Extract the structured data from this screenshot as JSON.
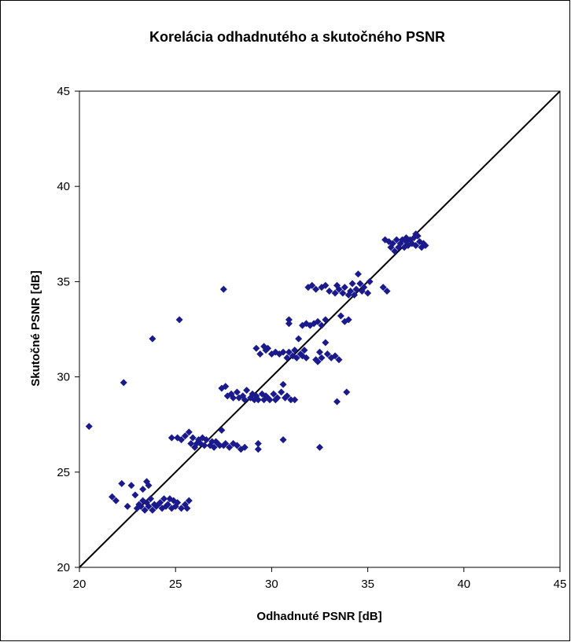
{
  "chart_data": {
    "type": "scatter",
    "title": "Korelácia odhadnutého a skutočného PSNR",
    "xlabel": "Odhadnuté PSNR [dB]",
    "ylabel": "Skutočné PSNR [dB]",
    "xlim": [
      20,
      45
    ],
    "ylim": [
      20,
      45
    ],
    "x_ticks": [
      "20",
      "25",
      "30",
      "35",
      "40",
      "45"
    ],
    "y_ticks": [
      "20",
      "25",
      "30",
      "35",
      "40",
      "45"
    ],
    "grid": false,
    "legend": "none",
    "marker": "diamond",
    "marker_color": "#1a1a8c",
    "reference_line": {
      "from": [
        20,
        20
      ],
      "to": [
        45,
        45
      ],
      "color": "#000000"
    },
    "series": [
      {
        "points": [
          [
            20.5,
            27.4
          ],
          [
            22.3,
            29.7
          ],
          [
            23.8,
            32.0
          ],
          [
            25.2,
            33.0
          ],
          [
            27.5,
            34.6
          ],
          [
            21.7,
            23.7
          ],
          [
            21.9,
            23.5
          ],
          [
            22.2,
            24.4
          ],
          [
            22.5,
            23.2
          ],
          [
            22.7,
            24.3
          ],
          [
            22.9,
            23.8
          ],
          [
            23.0,
            23.1
          ],
          [
            23.1,
            23.3
          ],
          [
            23.2,
            23.2
          ],
          [
            23.3,
            24.1
          ],
          [
            23.4,
            23.0
          ],
          [
            23.5,
            24.5
          ],
          [
            23.5,
            23.4
          ],
          [
            23.6,
            23.2
          ],
          [
            23.6,
            24.3
          ],
          [
            23.7,
            23.6
          ],
          [
            23.8,
            23.0
          ],
          [
            23.9,
            23.3
          ],
          [
            24.0,
            23.2
          ],
          [
            24.2,
            23.4
          ],
          [
            24.3,
            23.1
          ],
          [
            24.4,
            23.6
          ],
          [
            24.5,
            23.2
          ],
          [
            24.6,
            23.3
          ],
          [
            24.8,
            23.1
          ],
          [
            24.9,
            23.5
          ],
          [
            25.0,
            23.2
          ],
          [
            25.1,
            23.4
          ],
          [
            25.3,
            23.1
          ],
          [
            25.5,
            23.3
          ],
          [
            25.7,
            23.5
          ],
          [
            25.6,
            23.1
          ],
          [
            24.7,
            23.6
          ],
          [
            24.1,
            23.3
          ],
          [
            23.3,
            23.5
          ],
          [
            24.8,
            26.8
          ],
          [
            25.1,
            26.8
          ],
          [
            25.3,
            26.7
          ],
          [
            25.5,
            26.9
          ],
          [
            25.7,
            27.1
          ],
          [
            25.8,
            26.5
          ],
          [
            25.9,
            26.8
          ],
          [
            26.0,
            26.3
          ],
          [
            26.2,
            26.7
          ],
          [
            26.3,
            26.5
          ],
          [
            26.5,
            26.4
          ],
          [
            26.6,
            26.7
          ],
          [
            26.8,
            26.4
          ],
          [
            26.9,
            26.6
          ],
          [
            27.0,
            26.3
          ],
          [
            27.2,
            26.5
          ],
          [
            27.3,
            26.4
          ],
          [
            27.4,
            27.2
          ],
          [
            27.5,
            26.4
          ],
          [
            27.6,
            26.5
          ],
          [
            27.8,
            26.3
          ],
          [
            28.0,
            26.5
          ],
          [
            28.2,
            26.4
          ],
          [
            28.4,
            26.2
          ],
          [
            28.6,
            26.3
          ],
          [
            29.3,
            26.5
          ],
          [
            29.3,
            26.2
          ],
          [
            26.1,
            26.5
          ],
          [
            26.4,
            26.8
          ],
          [
            27.1,
            26.6
          ],
          [
            27.4,
            29.4
          ],
          [
            27.6,
            29.5
          ],
          [
            27.7,
            29.0
          ],
          [
            27.9,
            29.1
          ],
          [
            28.0,
            28.9
          ],
          [
            28.2,
            29.2
          ],
          [
            28.3,
            28.9
          ],
          [
            28.5,
            29.0
          ],
          [
            28.6,
            28.8
          ],
          [
            28.7,
            29.3
          ],
          [
            28.9,
            28.9
          ],
          [
            29.0,
            29.1
          ],
          [
            29.1,
            28.8
          ],
          [
            29.2,
            29.0
          ],
          [
            29.3,
            28.8
          ],
          [
            29.5,
            29.1
          ],
          [
            29.6,
            28.8
          ],
          [
            29.7,
            29.0
          ],
          [
            29.8,
            28.9
          ],
          [
            29.9,
            28.8
          ],
          [
            30.1,
            29.1
          ],
          [
            30.2,
            28.8
          ],
          [
            30.3,
            28.9
          ],
          [
            30.5,
            29.2
          ],
          [
            30.6,
            29.6
          ],
          [
            30.7,
            28.9
          ],
          [
            30.8,
            29.0
          ],
          [
            31.0,
            28.8
          ],
          [
            31.2,
            28.8
          ],
          [
            30.6,
            26.7
          ],
          [
            29.2,
            31.5
          ],
          [
            29.4,
            31.2
          ],
          [
            29.6,
            31.6
          ],
          [
            29.7,
            31.4
          ],
          [
            29.8,
            31.5
          ],
          [
            30.0,
            31.2
          ],
          [
            30.2,
            31.3
          ],
          [
            30.4,
            31.2
          ],
          [
            30.6,
            31.3
          ],
          [
            30.8,
            31.0
          ],
          [
            30.9,
            31.3
          ],
          [
            31.1,
            31.1
          ],
          [
            31.2,
            31.4
          ],
          [
            31.3,
            31.0
          ],
          [
            31.5,
            31.2
          ],
          [
            31.6,
            31.1
          ],
          [
            31.7,
            31.4
          ],
          [
            31.8,
            31.0
          ],
          [
            30.9,
            32.8
          ],
          [
            30.9,
            33.0
          ],
          [
            31.4,
            32.0
          ],
          [
            31.6,
            32.7
          ],
          [
            31.8,
            32.8
          ],
          [
            32.0,
            32.7
          ],
          [
            32.2,
            32.8
          ],
          [
            32.4,
            32.9
          ],
          [
            32.6,
            32.7
          ],
          [
            32.8,
            33.0
          ],
          [
            32.5,
            31.3
          ],
          [
            32.6,
            31.0
          ],
          [
            32.8,
            31.8
          ],
          [
            32.9,
            31.2
          ],
          [
            33.1,
            31.0
          ],
          [
            33.3,
            31.1
          ],
          [
            33.5,
            30.9
          ],
          [
            32.4,
            30.8
          ],
          [
            32.3,
            30.9
          ],
          [
            33.4,
            28.7
          ],
          [
            33.9,
            29.2
          ],
          [
            32.5,
            26.3
          ],
          [
            31.9,
            34.7
          ],
          [
            32.1,
            34.8
          ],
          [
            32.3,
            34.6
          ],
          [
            32.6,
            34.7
          ],
          [
            32.8,
            34.8
          ],
          [
            33.0,
            34.5
          ],
          [
            33.3,
            34.4
          ],
          [
            33.5,
            34.6
          ],
          [
            33.7,
            34.4
          ],
          [
            33.8,
            34.7
          ],
          [
            34.0,
            34.3
          ],
          [
            34.1,
            34.5
          ],
          [
            34.3,
            34.3
          ],
          [
            34.4,
            34.6
          ],
          [
            34.5,
            35.4
          ],
          [
            34.6,
            34.9
          ],
          [
            34.7,
            34.5
          ],
          [
            34.8,
            34.7
          ],
          [
            35.0,
            34.4
          ],
          [
            35.1,
            35.0
          ],
          [
            33.6,
            33.2
          ],
          [
            33.8,
            32.9
          ],
          [
            34.0,
            33.0
          ],
          [
            33.4,
            34.8
          ],
          [
            34.2,
            34.9
          ],
          [
            35.8,
            34.7
          ],
          [
            36.0,
            34.5
          ],
          [
            35.9,
            37.2
          ],
          [
            36.1,
            37.1
          ],
          [
            36.3,
            37.0
          ],
          [
            36.4,
            36.6
          ],
          [
            36.5,
            37.2
          ],
          [
            36.6,
            36.8
          ],
          [
            36.7,
            37.0
          ],
          [
            36.8,
            37.2
          ],
          [
            36.9,
            36.8
          ],
          [
            37.0,
            37.1
          ],
          [
            37.1,
            36.9
          ],
          [
            37.2,
            37.2
          ],
          [
            37.3,
            37.0
          ],
          [
            37.4,
            37.3
          ],
          [
            37.5,
            36.9
          ],
          [
            37.6,
            37.4
          ],
          [
            37.7,
            37.1
          ],
          [
            37.8,
            36.8
          ],
          [
            37.9,
            37.0
          ],
          [
            38.0,
            36.9
          ],
          [
            36.2,
            36.8
          ],
          [
            37.5,
            37.5
          ],
          [
            37.0,
            37.3
          ]
        ]
      }
    ]
  }
}
